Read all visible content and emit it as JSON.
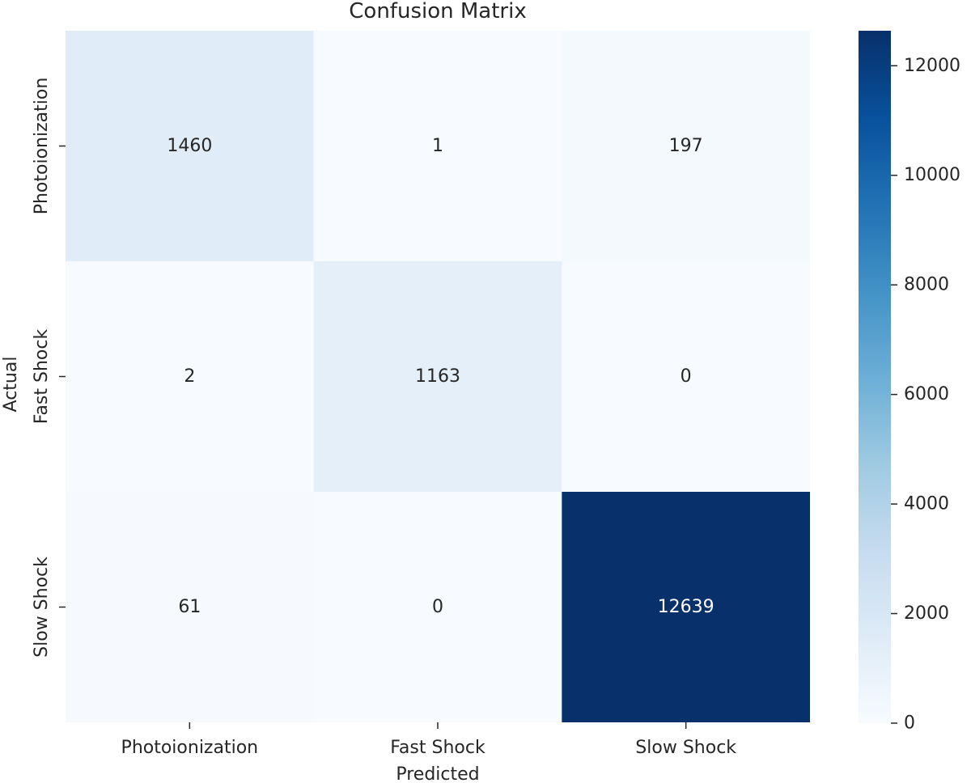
{
  "chart_data": {
    "type": "heatmap",
    "title": "Confusion Matrix",
    "xlabel": "Predicted",
    "ylabel": "Actual",
    "x_categories": [
      "Photoionization",
      "Fast Shock",
      "Slow Shock"
    ],
    "y_categories": [
      "Photoionization",
      "Fast Shock",
      "Slow Shock"
    ],
    "values": [
      [
        1460,
        1,
        197
      ],
      [
        2,
        1163,
        0
      ],
      [
        61,
        0,
        12639
      ]
    ],
    "colormap": "Blues",
    "colorbar": {
      "min": 0,
      "max": 12639,
      "ticks": [
        0,
        2000,
        4000,
        6000,
        8000,
        10000,
        12000
      ]
    }
  }
}
